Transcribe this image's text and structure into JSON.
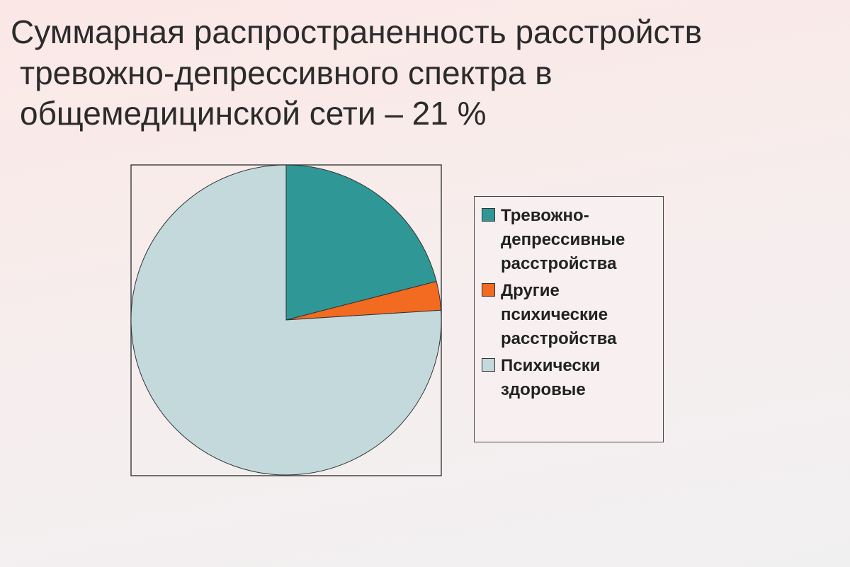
{
  "chart_data": {
    "type": "pie",
    "title": [
      "Суммарная распространенность расстройств",
      "тревожно-депрессивного спектра в",
      "общемедицинской сети – 21 %"
    ],
    "categories": [
      "Тревожно-депрессивные расстройства",
      "Другие психические расстройства",
      "Психически здоровые"
    ],
    "values": [
      21,
      3,
      76
    ],
    "colors": [
      "#2f9896",
      "#f26b21",
      "#c3d9dc"
    ],
    "legend": "right"
  }
}
